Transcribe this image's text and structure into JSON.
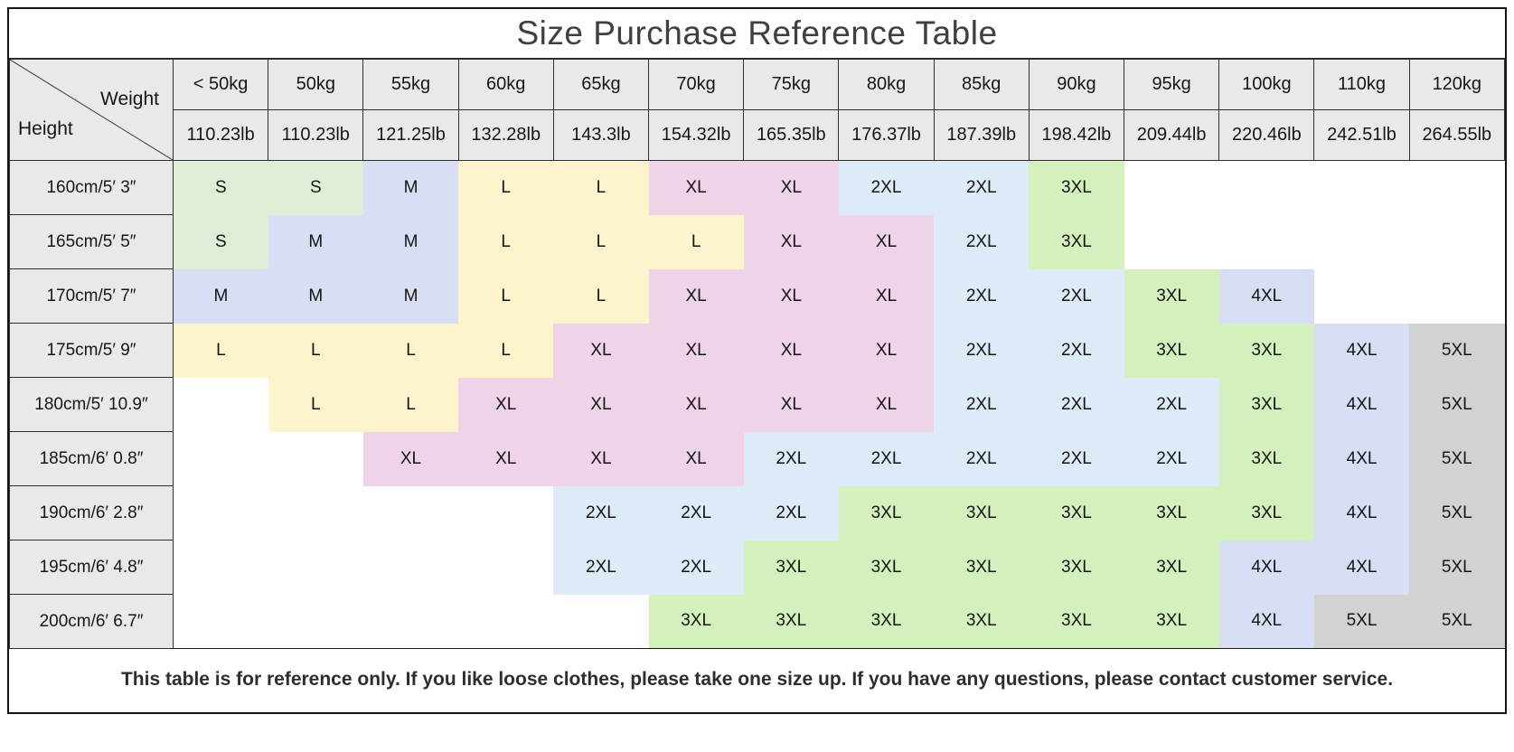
{
  "title": "Size Purchase Reference Table",
  "corner": {
    "weight_label": "Weight",
    "height_label": "Height"
  },
  "footer_note": "This table is for reference only. If you like loose clothes, please take one size up. If you have any questions, please contact customer service.",
  "colors": {
    "header_bg": "#e9e9e9",
    "border": "#2f2f2f",
    "title_text": "#3f3f3f"
  },
  "chart_data": {
    "type": "table",
    "title": "Size Purchase Reference Table",
    "col_axis": "Weight",
    "row_axis": "Height",
    "columns_kg": [
      "< 50kg",
      "50kg",
      "55kg",
      "60kg",
      "65kg",
      "70kg",
      "75kg",
      "80kg",
      "85kg",
      "90kg",
      "95kg",
      "100kg",
      "110kg",
      "120kg"
    ],
    "columns_lb": [
      "110.23lb",
      "110.23lb",
      "121.25lb",
      "132.28lb",
      "143.3lb",
      "154.32lb",
      "165.35lb",
      "176.37lb",
      "187.39lb",
      "198.42lb",
      "209.44lb",
      "220.46lb",
      "242.51lb",
      "264.55lb"
    ],
    "rows": [
      {
        "height": "160cm/5′ 3″",
        "sizes": [
          "S",
          "S",
          "M",
          "L",
          "L",
          "XL",
          "XL",
          "2XL",
          "2XL",
          "3XL",
          "",
          "",
          "",
          ""
        ]
      },
      {
        "height": "165cm/5′ 5″",
        "sizes": [
          "S",
          "M",
          "M",
          "L",
          "L",
          "L",
          "XL",
          "XL",
          "2XL",
          "3XL",
          "",
          "",
          "",
          ""
        ]
      },
      {
        "height": "170cm/5′ 7″",
        "sizes": [
          "M",
          "M",
          "M",
          "L",
          "L",
          "XL",
          "XL",
          "XL",
          "2XL",
          "2XL",
          "3XL",
          "4XL",
          "",
          ""
        ]
      },
      {
        "height": "175cm/5′ 9″",
        "sizes": [
          "L",
          "L",
          "L",
          "L",
          "XL",
          "XL",
          "XL",
          "XL",
          "2XL",
          "2XL",
          "3XL",
          "3XL",
          "4XL",
          "5XL"
        ]
      },
      {
        "height": "180cm/5′ 10.9″",
        "sizes": [
          "",
          "L",
          "L",
          "XL",
          "XL",
          "XL",
          "XL",
          "XL",
          "2XL",
          "2XL",
          "2XL",
          "3XL",
          "4XL",
          "5XL"
        ]
      },
      {
        "height": "185cm/6′ 0.8″",
        "sizes": [
          "",
          "",
          "XL",
          "XL",
          "XL",
          "XL",
          "2XL",
          "2XL",
          "2XL",
          "2XL",
          "2XL",
          "3XL",
          "4XL",
          "5XL"
        ]
      },
      {
        "height": "190cm/6′ 2.8″",
        "sizes": [
          "",
          "",
          "",
          "",
          "2XL",
          "2XL",
          "2XL",
          "3XL",
          "3XL",
          "3XL",
          "3XL",
          "3XL",
          "4XL",
          "5XL"
        ]
      },
      {
        "height": "195cm/6′ 4.8″",
        "sizes": [
          "",
          "",
          "",
          "",
          "2XL",
          "2XL",
          "3XL",
          "3XL",
          "3XL",
          "3XL",
          "3XL",
          "4XL",
          "4XL",
          "5XL"
        ]
      },
      {
        "height": "200cm/6′ 6.7″",
        "sizes": [
          "",
          "",
          "",
          "",
          "",
          "3XL",
          "3XL",
          "3XL",
          "3XL",
          "3XL",
          "3XL",
          "4XL",
          "5XL",
          "5XL"
        ]
      }
    ],
    "size_colors": {
      "S": "#dfecd6",
      "M": "#d8def3",
      "L": "#fdf3cd",
      "XL": "#efd3e9",
      "2XL": "#dcebf7",
      "3XL": "#d4f1bd",
      "4XL": "#d8def3",
      "5XL": "#d2d2d2"
    }
  }
}
